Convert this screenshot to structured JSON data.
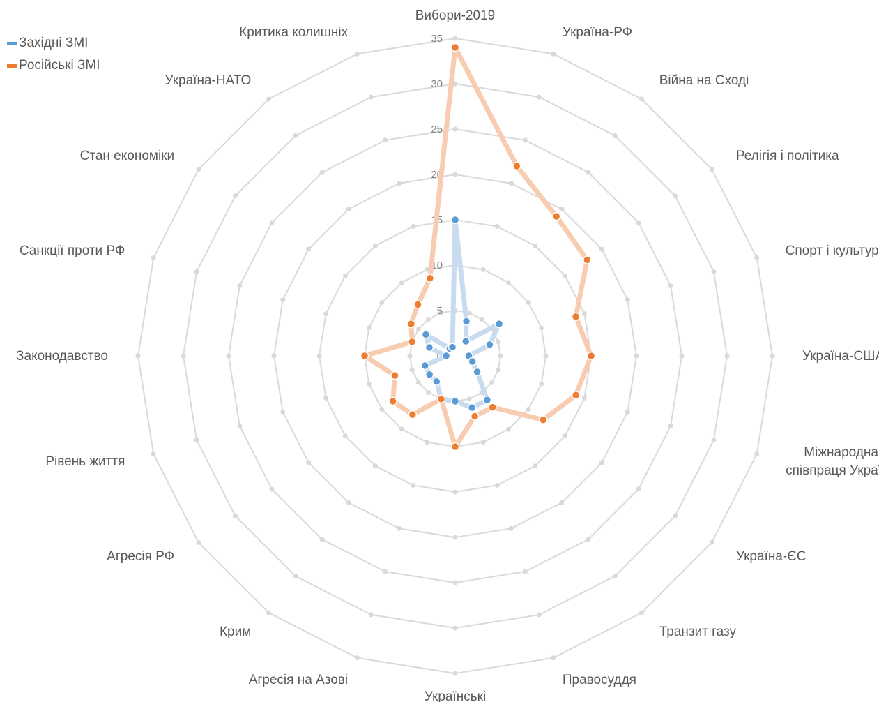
{
  "chart_data": {
    "type": "radar",
    "title": "",
    "categories": [
      "Вибори-2019",
      "Україна-РФ",
      "Війна на Сході",
      "Релігія і політика",
      "Спорт і культура",
      "Україна-США",
      "Міжнародна співпраця України",
      "Україна-ЄС",
      "Транзит газу",
      "Правосуддя",
      "Українські",
      "Агресія на Азові",
      "Крим",
      "Агресія РФ",
      "Рівень життя",
      "Законодавство",
      "Санкції проти РФ",
      "Стан економіки",
      "Україна-НАТО",
      "Критика колишніх"
    ],
    "category_lines": {
      "Міжнародна співпраця України": [
        "Міжнародна",
        "співпраця України"
      ]
    },
    "rlim": [
      0,
      35
    ],
    "ticks": [
      0,
      5,
      10,
      15,
      20,
      25,
      30,
      35
    ],
    "grid": true,
    "legend_position": "top-left",
    "series": [
      {
        "name": "Західні ЗМІ",
        "color": "#5b9bd5",
        "line_color": "#c9dcef",
        "values": [
          15,
          4,
          2,
          6,
          4,
          1.5,
          2,
          3,
          6,
          6,
          5,
          5,
          3.5,
          3.5,
          3.5,
          1,
          3,
          4,
          1,
          1
        ]
      },
      {
        "name": "Російські ЗМІ",
        "color": "#ed7d31",
        "line_color": "#f8ccb0",
        "values": [
          34,
          22,
          19,
          18,
          14,
          15,
          14,
          12,
          7,
          7,
          10,
          5,
          8,
          8.5,
          7,
          10,
          5,
          6,
          7,
          9
        ]
      }
    ]
  }
}
